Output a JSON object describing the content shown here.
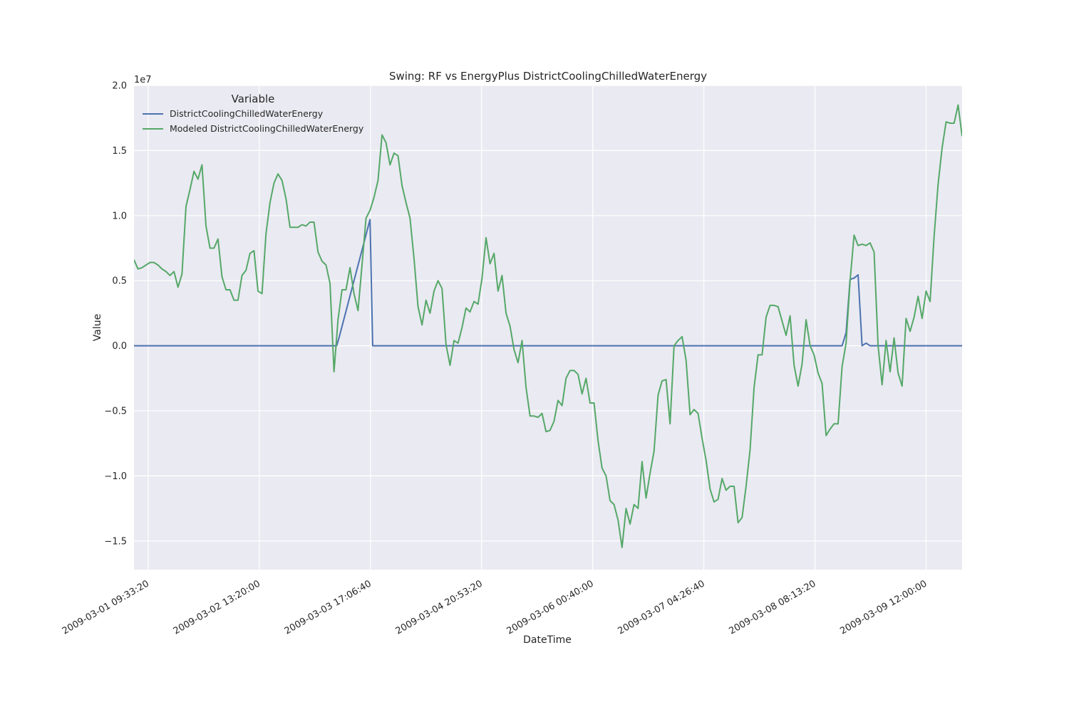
{
  "chart_data": {
    "type": "line",
    "title": "Swing: RF vs EnergyPlus DistrictCoolingChilledWaterEnergy",
    "xlabel": "DateTime",
    "ylabel": "Value",
    "y_scale_label": "1e7",
    "x_range": [
      "2009-03-01 06:00:00",
      "2009-03-09 21:00:00"
    ],
    "ylim": [
      -1.72,
      2.0
    ],
    "y_ticks": [
      -1.5,
      -1.0,
      -0.5,
      0.0,
      0.5,
      1.0,
      1.5,
      2.0
    ],
    "y_tick_labels": [
      "−1.5",
      "−1.0",
      "−0.5",
      "0.0",
      "0.5",
      "1.0",
      "1.5",
      "2.0"
    ],
    "x_ticks": [
      "2009-03-01 09:33:20",
      "2009-03-02 13:20:00",
      "2009-03-03 17:06:40",
      "2009-03-04 20:53:20",
      "2009-03-06 00:40:00",
      "2009-03-07 04:26:40",
      "2009-03-08 08:13:20",
      "2009-03-09 12:00:00"
    ],
    "grid": true,
    "legend": {
      "title": "Variable",
      "placement": "top-left",
      "entries": [
        "DistrictCoolingChilledWaterEnergy",
        "Modeled DistrictCoolingChilledWaterEnergy"
      ]
    },
    "series": [
      {
        "name": "DistrictCoolingChilledWaterEnergy",
        "color": "#4c72b0",
        "points": [
          [
            "2009-03-01 06:00:00",
            0.0
          ],
          [
            "2009-03-03 08:40:00",
            0.0
          ],
          [
            "2009-03-03 09:20:00",
            0.07
          ],
          [
            "2009-03-03 17:00:00",
            0.97
          ],
          [
            "2009-03-03 17:40:00",
            0.0
          ],
          [
            "2009-03-08 15:00:00",
            0.0
          ],
          [
            "2009-03-08 16:00:00",
            0.1
          ],
          [
            "2009-03-08 17:00:00",
            0.51
          ],
          [
            "2009-03-08 18:00:00",
            0.52
          ],
          [
            "2009-03-08 19:00:00",
            0.545
          ],
          [
            "2009-03-08 20:00:00",
            0.0
          ],
          [
            "2009-03-08 21:00:00",
            0.02
          ],
          [
            "2009-03-08 22:00:00",
            0.0
          ],
          [
            "2009-03-09 21:00:00",
            0.0
          ]
        ]
      },
      {
        "name": "Modeled DistrictCoolingChilledWaterEnergy",
        "color": "#55a868",
        "points": [
          [
            "2009-03-01 06:00:00",
            0.66
          ],
          [
            "2009-03-01 07:00:00",
            0.59
          ],
          [
            "2009-03-01 08:00:00",
            0.6
          ],
          [
            "2009-03-01 09:00:00",
            0.62
          ],
          [
            "2009-03-01 10:00:00",
            0.64
          ],
          [
            "2009-03-01 11:00:00",
            0.64
          ],
          [
            "2009-03-01 12:00:00",
            0.62
          ],
          [
            "2009-03-01 13:00:00",
            0.59
          ],
          [
            "2009-03-01 14:00:00",
            0.57
          ],
          [
            "2009-03-01 15:00:00",
            0.54
          ],
          [
            "2009-03-01 16:00:00",
            0.57
          ],
          [
            "2009-03-01 17:00:00",
            0.45
          ],
          [
            "2009-03-01 18:00:00",
            0.55
          ],
          [
            "2009-03-01 19:00:00",
            1.07
          ],
          [
            "2009-03-01 20:00:00",
            1.2
          ],
          [
            "2009-03-01 21:00:00",
            1.34
          ],
          [
            "2009-03-01 22:00:00",
            1.28
          ],
          [
            "2009-03-01 23:00:00",
            1.39
          ],
          [
            "2009-03-02 00:00:00",
            0.92
          ],
          [
            "2009-03-02 01:00:00",
            0.75
          ],
          [
            "2009-03-02 02:00:00",
            0.75
          ],
          [
            "2009-03-02 03:00:00",
            0.82
          ],
          [
            "2009-03-02 04:00:00",
            0.53
          ],
          [
            "2009-03-02 05:00:00",
            0.43
          ],
          [
            "2009-03-02 06:00:00",
            0.43
          ],
          [
            "2009-03-02 07:00:00",
            0.35
          ],
          [
            "2009-03-02 08:00:00",
            0.35
          ],
          [
            "2009-03-02 09:00:00",
            0.54
          ],
          [
            "2009-03-02 10:00:00",
            0.58
          ],
          [
            "2009-03-02 11:00:00",
            0.71
          ],
          [
            "2009-03-02 12:00:00",
            0.73
          ],
          [
            "2009-03-02 13:00:00",
            0.42
          ],
          [
            "2009-03-02 14:00:00",
            0.4
          ],
          [
            "2009-03-02 15:00:00",
            0.86
          ],
          [
            "2009-03-02 16:00:00",
            1.1
          ],
          [
            "2009-03-02 17:00:00",
            1.25
          ],
          [
            "2009-03-02 18:00:00",
            1.32
          ],
          [
            "2009-03-02 19:00:00",
            1.27
          ],
          [
            "2009-03-02 20:00:00",
            1.13
          ],
          [
            "2009-03-02 21:00:00",
            0.91
          ],
          [
            "2009-03-02 22:00:00",
            0.91
          ],
          [
            "2009-03-02 23:00:00",
            0.91
          ],
          [
            "2009-03-03 00:00:00",
            0.93
          ],
          [
            "2009-03-03 01:00:00",
            0.92
          ],
          [
            "2009-03-03 02:00:00",
            0.95
          ],
          [
            "2009-03-03 03:00:00",
            0.95
          ],
          [
            "2009-03-03 04:00:00",
            0.72
          ],
          [
            "2009-03-03 05:00:00",
            0.65
          ],
          [
            "2009-03-03 06:00:00",
            0.62
          ],
          [
            "2009-03-03 07:00:00",
            0.48
          ],
          [
            "2009-03-03 08:00:00",
            -0.2
          ],
          [
            "2009-03-03 09:00:00",
            0.2
          ],
          [
            "2009-03-03 10:00:00",
            0.43
          ],
          [
            "2009-03-03 11:00:00",
            0.43
          ],
          [
            "2009-03-03 12:00:00",
            0.6
          ],
          [
            "2009-03-03 13:00:00",
            0.4
          ],
          [
            "2009-03-03 14:00:00",
            0.27
          ],
          [
            "2009-03-03 15:00:00",
            0.62
          ],
          [
            "2009-03-03 16:00:00",
            0.98
          ],
          [
            "2009-03-03 17:00:00",
            1.04
          ],
          [
            "2009-03-03 18:00:00",
            1.14
          ],
          [
            "2009-03-03 19:00:00",
            1.27
          ],
          [
            "2009-03-03 20:00:00",
            1.62
          ],
          [
            "2009-03-03 21:00:00",
            1.56
          ],
          [
            "2009-03-03 22:00:00",
            1.39
          ],
          [
            "2009-03-03 23:00:00",
            1.48
          ],
          [
            "2009-03-04 00:00:00",
            1.46
          ],
          [
            "2009-03-04 01:00:00",
            1.23
          ],
          [
            "2009-03-04 02:00:00",
            1.1
          ],
          [
            "2009-03-04 03:00:00",
            0.98
          ],
          [
            "2009-03-04 04:00:00",
            0.67
          ],
          [
            "2009-03-04 05:00:00",
            0.3
          ],
          [
            "2009-03-04 06:00:00",
            0.16
          ],
          [
            "2009-03-04 07:00:00",
            0.35
          ],
          [
            "2009-03-04 08:00:00",
            0.25
          ],
          [
            "2009-03-04 09:00:00",
            0.42
          ],
          [
            "2009-03-04 10:00:00",
            0.5
          ],
          [
            "2009-03-04 11:00:00",
            0.44
          ],
          [
            "2009-03-04 12:00:00",
            0.01
          ],
          [
            "2009-03-04 13:00:00",
            -0.15
          ],
          [
            "2009-03-04 14:00:00",
            0.04
          ],
          [
            "2009-03-04 15:00:00",
            0.02
          ],
          [
            "2009-03-04 16:00:00",
            0.14
          ],
          [
            "2009-03-04 17:00:00",
            0.29
          ],
          [
            "2009-03-04 18:00:00",
            0.26
          ],
          [
            "2009-03-04 19:00:00",
            0.34
          ],
          [
            "2009-03-04 20:00:00",
            0.32
          ],
          [
            "2009-03-04 21:00:00",
            0.52
          ],
          [
            "2009-03-04 22:00:00",
            0.83
          ],
          [
            "2009-03-04 23:00:00",
            0.63
          ],
          [
            "2009-03-05 00:00:00",
            0.71
          ],
          [
            "2009-03-05 01:00:00",
            0.42
          ],
          [
            "2009-03-05 02:00:00",
            0.54
          ],
          [
            "2009-03-05 03:00:00",
            0.25
          ],
          [
            "2009-03-05 04:00:00",
            0.15
          ],
          [
            "2009-03-05 05:00:00",
            -0.03
          ],
          [
            "2009-03-05 06:00:00",
            -0.13
          ],
          [
            "2009-03-05 07:00:00",
            0.04
          ],
          [
            "2009-03-05 08:00:00",
            -0.32
          ],
          [
            "2009-03-05 09:00:00",
            -0.54
          ],
          [
            "2009-03-05 10:00:00",
            -0.54
          ],
          [
            "2009-03-05 11:00:00",
            -0.55
          ],
          [
            "2009-03-05 12:00:00",
            -0.52
          ],
          [
            "2009-03-05 13:00:00",
            -0.66
          ],
          [
            "2009-03-05 14:00:00",
            -0.65
          ],
          [
            "2009-03-05 15:00:00",
            -0.58
          ],
          [
            "2009-03-05 16:00:00",
            -0.42
          ],
          [
            "2009-03-05 17:00:00",
            -0.46
          ],
          [
            "2009-03-05 18:00:00",
            -0.25
          ],
          [
            "2009-03-05 19:00:00",
            -0.19
          ],
          [
            "2009-03-05 20:00:00",
            -0.19
          ],
          [
            "2009-03-05 21:00:00",
            -0.22
          ],
          [
            "2009-03-05 22:00:00",
            -0.37
          ],
          [
            "2009-03-05 23:00:00",
            -0.25
          ],
          [
            "2009-03-06 00:00:00",
            -0.44
          ],
          [
            "2009-03-06 01:00:00",
            -0.44
          ],
          [
            "2009-03-06 02:00:00",
            -0.73
          ],
          [
            "2009-03-06 03:00:00",
            -0.94
          ],
          [
            "2009-03-06 04:00:00",
            -1.0
          ],
          [
            "2009-03-06 05:00:00",
            -1.19
          ],
          [
            "2009-03-06 06:00:00",
            -1.22
          ],
          [
            "2009-03-06 07:00:00",
            -1.34
          ],
          [
            "2009-03-06 08:00:00",
            -1.55
          ],
          [
            "2009-03-06 09:00:00",
            -1.25
          ],
          [
            "2009-03-06 10:00:00",
            -1.37
          ],
          [
            "2009-03-06 11:00:00",
            -1.22
          ],
          [
            "2009-03-06 12:00:00",
            -1.25
          ],
          [
            "2009-03-06 13:00:00",
            -0.89
          ],
          [
            "2009-03-06 14:00:00",
            -1.17
          ],
          [
            "2009-03-06 15:00:00",
            -0.98
          ],
          [
            "2009-03-06 16:00:00",
            -0.81
          ],
          [
            "2009-03-06 17:00:00",
            -0.38
          ],
          [
            "2009-03-06 18:00:00",
            -0.27
          ],
          [
            "2009-03-06 19:00:00",
            -0.26
          ],
          [
            "2009-03-06 20:00:00",
            -0.6
          ],
          [
            "2009-03-06 21:00:00",
            0.0
          ],
          [
            "2009-03-06 22:00:00",
            0.04
          ],
          [
            "2009-03-06 23:00:00",
            0.07
          ],
          [
            "2009-03-07 00:00:00",
            -0.11
          ],
          [
            "2009-03-07 01:00:00",
            -0.53
          ],
          [
            "2009-03-07 02:00:00",
            -0.49
          ],
          [
            "2009-03-07 03:00:00",
            -0.52
          ],
          [
            "2009-03-07 04:00:00",
            -0.71
          ],
          [
            "2009-03-07 05:00:00",
            -0.88
          ],
          [
            "2009-03-07 06:00:00",
            -1.1
          ],
          [
            "2009-03-07 07:00:00",
            -1.2
          ],
          [
            "2009-03-07 08:00:00",
            -1.18
          ],
          [
            "2009-03-07 09:00:00",
            -1.02
          ],
          [
            "2009-03-07 10:00:00",
            -1.11
          ],
          [
            "2009-03-07 11:00:00",
            -1.08
          ],
          [
            "2009-03-07 12:00:00",
            -1.08
          ],
          [
            "2009-03-07 13:00:00",
            -1.36
          ],
          [
            "2009-03-07 14:00:00",
            -1.32
          ],
          [
            "2009-03-07 15:00:00",
            -1.08
          ],
          [
            "2009-03-07 16:00:00",
            -0.8
          ],
          [
            "2009-03-07 17:00:00",
            -0.32
          ],
          [
            "2009-03-07 18:00:00",
            -0.07
          ],
          [
            "2009-03-07 19:00:00",
            -0.07
          ],
          [
            "2009-03-07 20:00:00",
            0.22
          ],
          [
            "2009-03-07 21:00:00",
            0.31
          ],
          [
            "2009-03-07 22:00:00",
            0.31
          ],
          [
            "2009-03-07 23:00:00",
            0.3
          ],
          [
            "2009-03-08 00:00:00",
            0.19
          ],
          [
            "2009-03-08 01:00:00",
            0.08
          ],
          [
            "2009-03-08 02:00:00",
            0.23
          ],
          [
            "2009-03-08 03:00:00",
            -0.15
          ],
          [
            "2009-03-08 04:00:00",
            -0.31
          ],
          [
            "2009-03-08 05:00:00",
            -0.14
          ],
          [
            "2009-03-08 06:00:00",
            0.2
          ],
          [
            "2009-03-08 07:00:00",
            0.0
          ],
          [
            "2009-03-08 08:00:00",
            -0.07
          ],
          [
            "2009-03-08 09:00:00",
            -0.21
          ],
          [
            "2009-03-08 10:00:00",
            -0.29
          ],
          [
            "2009-03-08 11:00:00",
            -0.69
          ],
          [
            "2009-03-08 12:00:00",
            -0.64
          ],
          [
            "2009-03-08 13:00:00",
            -0.6
          ],
          [
            "2009-03-08 14:00:00",
            -0.6
          ],
          [
            "2009-03-08 15:00:00",
            -0.16
          ],
          [
            "2009-03-08 16:00:00",
            0.02
          ],
          [
            "2009-03-08 17:00:00",
            0.5
          ],
          [
            "2009-03-08 18:00:00",
            0.85
          ],
          [
            "2009-03-08 19:00:00",
            0.77
          ],
          [
            "2009-03-08 20:00:00",
            0.78
          ],
          [
            "2009-03-08 21:00:00",
            0.77
          ],
          [
            "2009-03-08 22:00:00",
            0.79
          ],
          [
            "2009-03-08 23:00:00",
            0.72
          ],
          [
            "2009-03-09 00:00:00",
            0.0
          ],
          [
            "2009-03-09 01:00:00",
            -0.3
          ],
          [
            "2009-03-09 02:00:00",
            0.04
          ],
          [
            "2009-03-09 03:00:00",
            -0.2
          ],
          [
            "2009-03-09 04:00:00",
            0.06
          ],
          [
            "2009-03-09 05:00:00",
            -0.21
          ],
          [
            "2009-03-09 06:00:00",
            -0.31
          ],
          [
            "2009-03-09 07:00:00",
            0.21
          ],
          [
            "2009-03-09 08:00:00",
            0.11
          ],
          [
            "2009-03-09 09:00:00",
            0.22
          ],
          [
            "2009-03-09 10:00:00",
            0.38
          ],
          [
            "2009-03-09 11:00:00",
            0.21
          ],
          [
            "2009-03-09 12:00:00",
            0.42
          ],
          [
            "2009-03-09 13:00:00",
            0.34
          ],
          [
            "2009-03-09 14:00:00",
            0.84
          ],
          [
            "2009-03-09 15:00:00",
            1.24
          ],
          [
            "2009-03-09 16:00:00",
            1.52
          ],
          [
            "2009-03-09 17:00:00",
            1.72
          ],
          [
            "2009-03-09 18:00:00",
            1.71
          ],
          [
            "2009-03-09 19:00:00",
            1.71
          ],
          [
            "2009-03-09 20:00:00",
            1.85
          ],
          [
            "2009-03-09 21:00:00",
            1.61
          ]
        ]
      }
    ]
  }
}
